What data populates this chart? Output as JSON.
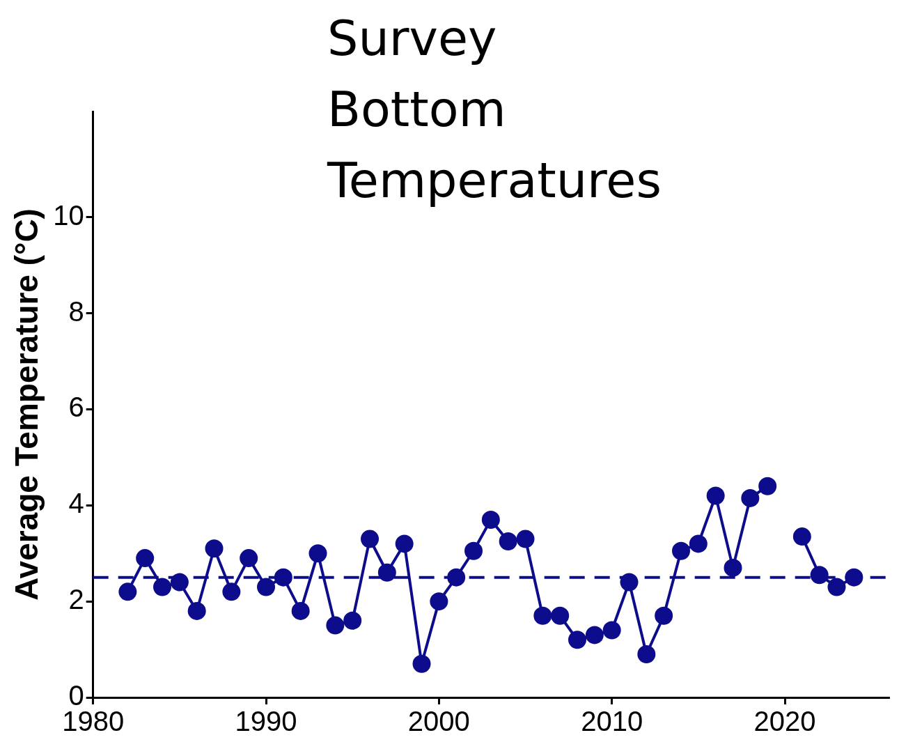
{
  "chart_data": {
    "type": "line",
    "title": "Survey\nBottom\nTemperatures",
    "ylabel": "Average Temperature (°C)",
    "x": [
      1982,
      1983,
      1984,
      1985,
      1986,
      1987,
      1988,
      1989,
      1990,
      1991,
      1992,
      1993,
      1994,
      1995,
      1996,
      1997,
      1998,
      1999,
      2000,
      2001,
      2002,
      2003,
      2004,
      2005,
      2006,
      2007,
      2008,
      2009,
      2010,
      2011,
      2012,
      2013,
      2014,
      2015,
      2016,
      2017,
      2018,
      2019,
      2020,
      2021,
      2022,
      2023,
      2024
    ],
    "series": [
      {
        "color": "#0c0c8c",
        "values": [
          2.2,
          2.9,
          2.3,
          2.4,
          1.8,
          3.1,
          2.2,
          2.9,
          2.3,
          2.5,
          1.8,
          3.0,
          1.5,
          1.6,
          3.3,
          2.6,
          3.2,
          0.7,
          2.0,
          2.5,
          3.05,
          3.7,
          3.25,
          3.3,
          1.7,
          1.7,
          1.2,
          1.3,
          1.4,
          2.4,
          0.9,
          1.7,
          3.05,
          3.2,
          4.2,
          2.7,
          4.15,
          4.4,
          null,
          3.35,
          2.55,
          2.3,
          2.5
        ]
      }
    ],
    "xlim": [
      1980,
      2026
    ],
    "xticks": [
      1980,
      1990,
      2000,
      2010,
      2020
    ],
    "ylim": [
      0,
      12.2
    ],
    "yticks": [
      0,
      2,
      4,
      6,
      8,
      10
    ],
    "grid": false,
    "legend": false,
    "marker": "circle",
    "line_style": "solid",
    "ref_lines": [
      {
        "axis": "y",
        "value": 2.5,
        "color": "#0c0c8c",
        "line_style": "dashed"
      }
    ]
  }
}
